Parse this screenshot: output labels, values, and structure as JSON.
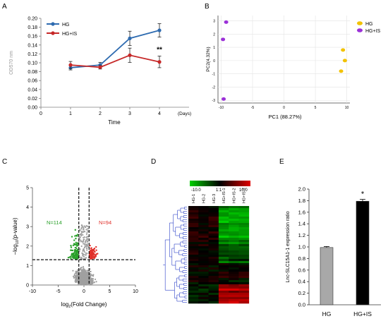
{
  "panels": {
    "A": {
      "letter": "A"
    },
    "B": {
      "letter": "B"
    },
    "C": {
      "letter": "C"
    },
    "D": {
      "letter": "D"
    },
    "E": {
      "letter": "E"
    }
  },
  "chart_data": [
    {
      "panel": "A",
      "type": "line",
      "ylabel": "OD570 nm",
      "xlabel": "Time",
      "x_unit": "(Days)",
      "x": [
        1,
        2,
        3,
        4
      ],
      "xticks": [
        0,
        1,
        2,
        3,
        4
      ],
      "yticks": [
        "0.00",
        "0.02",
        "0.04",
        "0.06",
        "0.08",
        "0.10",
        "0.12",
        "0.14",
        "0.16",
        "0.18",
        "0.20"
      ],
      "ylim": [
        0,
        0.2
      ],
      "xlim": [
        0,
        5
      ],
      "legend_position": "top-left",
      "annotation": "**",
      "series": [
        {
          "name": "HG",
          "color": "#2e6bb0",
          "values": [
            0.089,
            0.095,
            0.155,
            0.173
          ],
          "err": [
            0.005,
            0.006,
            0.016,
            0.015
          ]
        },
        {
          "name": "HG+IS",
          "color": "#c62828",
          "values": [
            0.095,
            0.09,
            0.117,
            0.102
          ],
          "err": [
            0.008,
            0.004,
            0.016,
            0.013
          ]
        }
      ]
    },
    {
      "panel": "B",
      "type": "scatter",
      "xlabel": "PC1 (88.27%)",
      "ylabel": "PC2(4.32%)",
      "xticks": [
        "-10",
        "-5",
        "0",
        "5",
        "10"
      ],
      "yticks": [
        "3",
        "2",
        "1",
        "0",
        "-1",
        "-2",
        "-3"
      ],
      "xlim": [
        -10.5,
        10.5
      ],
      "ylim": [
        -3.2,
        3.4
      ],
      "legend_position": "top-right",
      "series": [
        {
          "name": "HG",
          "color": "#f2c200",
          "points": [
            [
              9.4,
              0.8
            ],
            [
              9.7,
              0.0
            ],
            [
              9.1,
              -0.8
            ]
          ]
        },
        {
          "name": "HG+IS",
          "color": "#9b30d8",
          "points": [
            [
              -9.2,
              2.9
            ],
            [
              -9.7,
              1.6
            ],
            [
              -9.6,
              -2.9
            ]
          ]
        }
      ]
    },
    {
      "panel": "C",
      "type": "scatter",
      "subtype": "volcano",
      "xlabel_prefix": "log",
      "xlabel_sub": "2",
      "xlabel_suffix": "(Fold Change)",
      "ylabel_prefix": "−log",
      "ylabel_sub": "10",
      "ylabel_suffix": "(p-value)",
      "xticks": [
        "-10",
        "-5",
        "0",
        "5",
        "10"
      ],
      "yticks": [
        "0",
        "1",
        "2",
        "3",
        "4",
        "5"
      ],
      "xlim": [
        -10,
        10
      ],
      "ylim": [
        0,
        5
      ],
      "annotations": [
        {
          "text": "N=114",
          "color": "#2aa02a"
        },
        {
          "text": "N=94",
          "color": "#e0302a"
        }
      ],
      "threshold_lines": {
        "x": [
          -1,
          1
        ],
        "y": 1.3
      },
      "series": [
        {
          "name": "",
          "color": "#2aa02a",
          "count": 114
        },
        {
          "name": "",
          "color": "#e0302a",
          "count": 94
        },
        {
          "name": "",
          "color": "#a0a0a0"
        }
      ]
    },
    {
      "panel": "D",
      "type": "heatmap",
      "colorbar": {
        "labels": [
          "-10.0",
          "1:1",
          "10.0"
        ],
        "colors": [
          "#00d000",
          "#000000",
          "#e00000"
        ]
      },
      "columns": [
        "HG-1",
        "HG-2",
        "HG-3",
        "HG+IS-1",
        "HG+IS-2",
        "HG+IS-3"
      ],
      "dendrogram_color": "#2a40c8"
    },
    {
      "panel": "E",
      "type": "bar",
      "ylabel": "Lnc-SLC15A1-1 expression ratio",
      "categories": [
        "HG",
        "HG+IS"
      ],
      "values": [
        0.99,
        1.79
      ],
      "err": [
        0.005,
        0.02
      ],
      "colors": [
        "#a8a8a8",
        "#000000"
      ],
      "yticks": [
        "0.0",
        "0.2",
        "0.4",
        "0.6",
        "0.8",
        "1.0",
        "1.2",
        "1.4",
        "1.6",
        "1.8",
        "2.0"
      ],
      "ylim": [
        0,
        2.0
      ],
      "annotation": "*"
    }
  ]
}
